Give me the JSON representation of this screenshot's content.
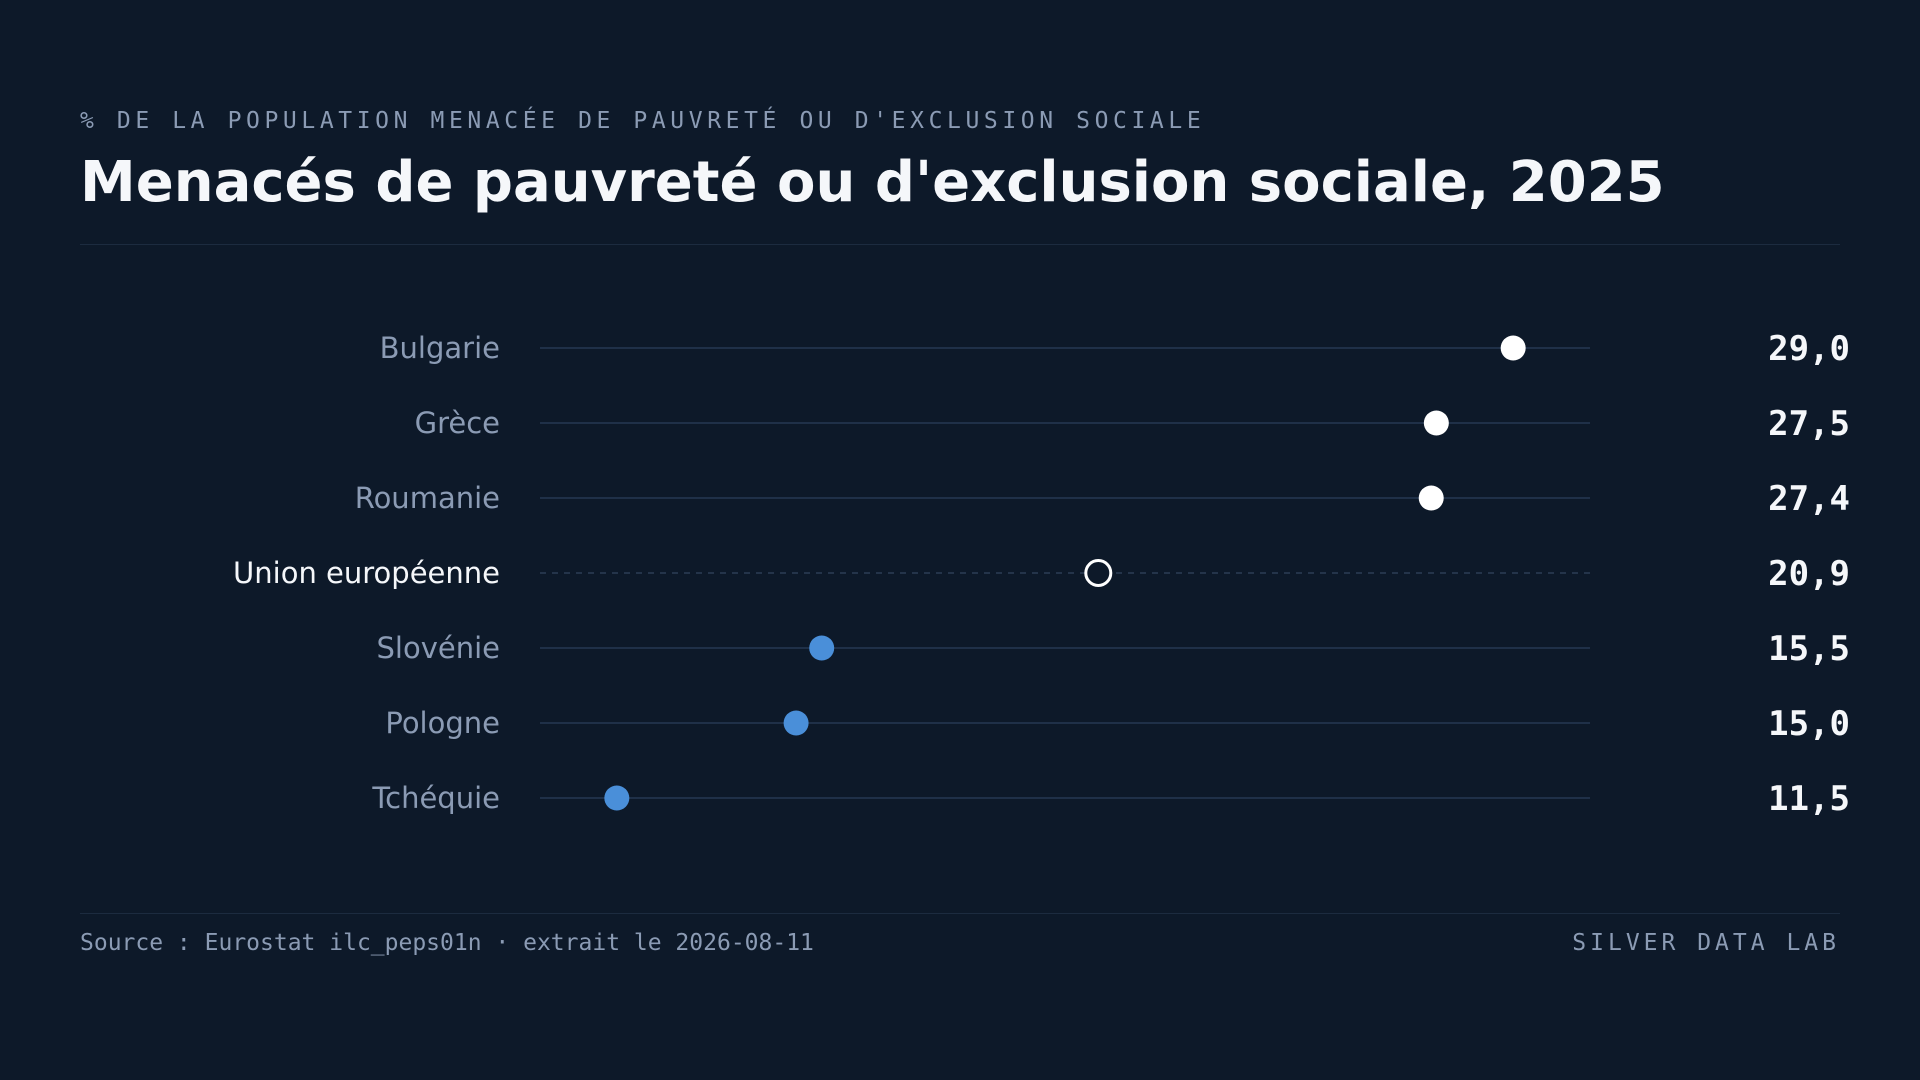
{
  "header": {
    "eyebrow": "% DE LA POPULATION MENACÉE DE PAUVRETÉ OU D'EXCLUSION SOCIALE",
    "title": "Menacés de pauvreté ou d'exclusion sociale, 2025"
  },
  "footer": {
    "source": "Source : Eurostat ilc_peps01n · extrait le 2026-08-11",
    "brand": "SILVER DATA LAB"
  },
  "colors": {
    "background": "#0d1929",
    "above_average": "#ffffff",
    "below_average": "#4a8fd9",
    "reference": "#ffffff",
    "track": "#1f3048",
    "label": "#8b9bb4",
    "label_reference": "#f5f7fa",
    "value": "#f5f7fa"
  },
  "chart_data": {
    "type": "dot",
    "title": "Menacés de pauvreté ou d'exclusion sociale, 2025",
    "subtitle": "% DE LA POPULATION MENACÉE DE PAUVRETÉ OU D'EXCLUSION SOCIALE",
    "unit": "%",
    "xlim": [
      10,
      30.5
    ],
    "grid": false,
    "categories": [
      "Bulgarie",
      "Grèce",
      "Roumanie",
      "Union européenne",
      "Slovénie",
      "Pologne",
      "Tchéquie"
    ],
    "values": [
      29.0,
      27.5,
      27.4,
      20.9,
      15.5,
      15.0,
      11.5
    ],
    "value_labels": [
      "29,0",
      "27,5",
      "27,4",
      "20,9",
      "15,5",
      "15,0",
      "11,5"
    ],
    "reference_category": "Union européenne"
  }
}
